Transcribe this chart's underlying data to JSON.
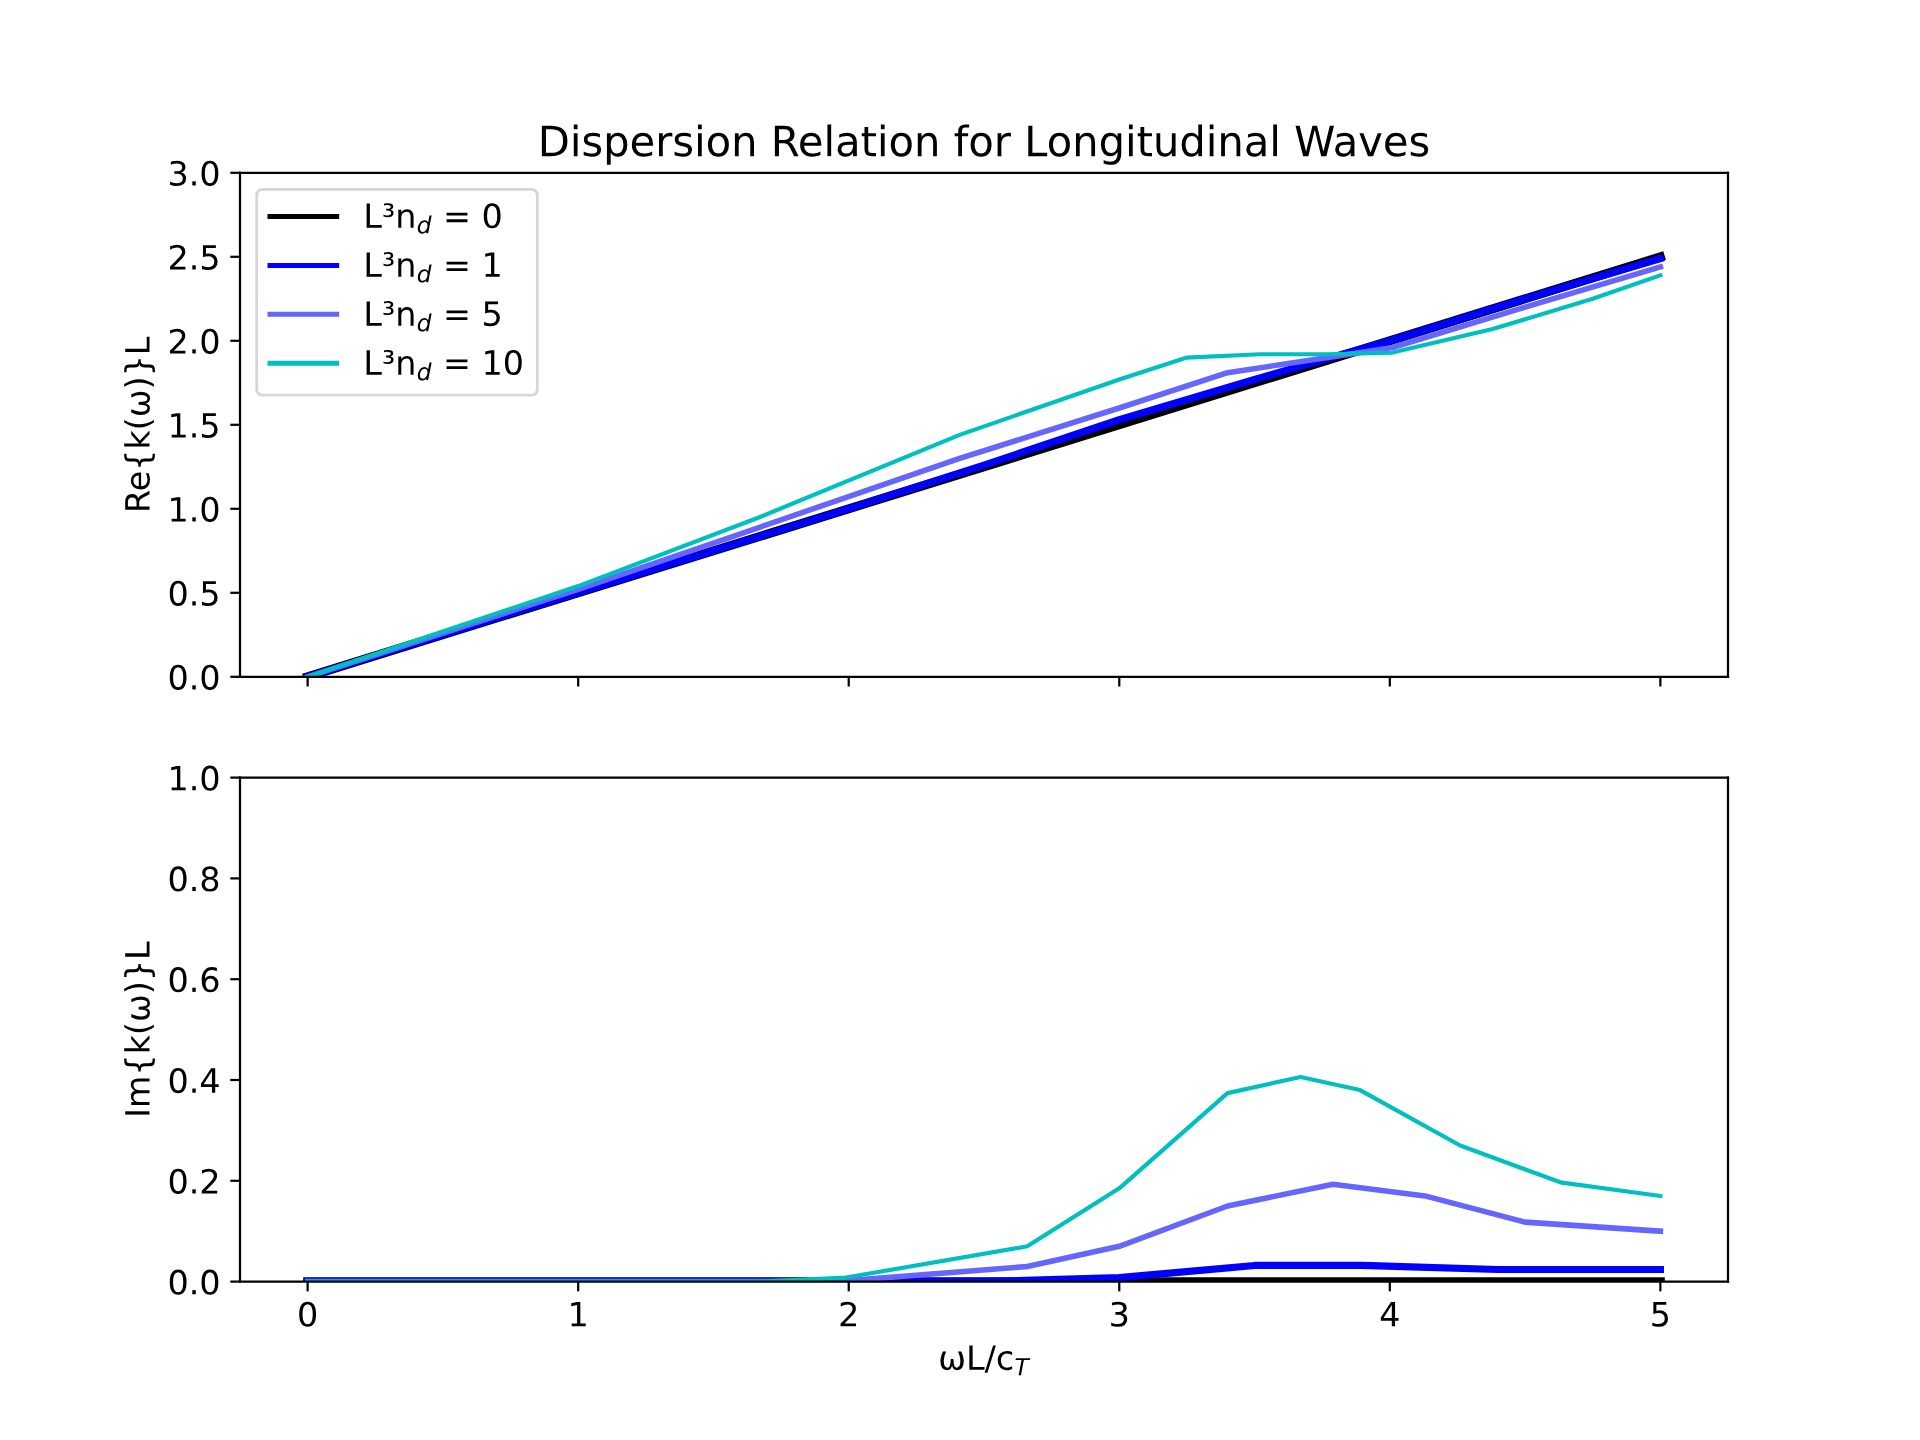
{
  "chart_data": [
    {
      "type": "line",
      "title": "Dispersion Relation for Longitudinal Waves",
      "ylabel": "Re{k(ω)}L",
      "series": [
        {
          "name": "L³n$_{d}$ = 0",
          "color": "#000000",
          "x": [
            0,
            5
          ],
          "values": [
            0,
            2.5
          ]
        },
        {
          "name": "L³n$_{d}$ = 1",
          "color": "#0000ff",
          "x": [
            0,
            1,
            2,
            2.5,
            3,
            3.5,
            4,
            4.5,
            5
          ],
          "values": [
            0,
            0.5,
            1.0,
            1.26,
            1.53,
            1.77,
            2.0,
            2.25,
            2.49
          ]
        },
        {
          "name": "L³n$_{d}$ = 5",
          "color": "#6666ff",
          "x": [
            0,
            1,
            1.67,
            2.41,
            3.0,
            3.4,
            3.77,
            4.01,
            4.5,
            5
          ],
          "values": [
            0,
            0.52,
            0.89,
            1.3,
            1.6,
            1.81,
            1.9,
            1.96,
            2.2,
            2.44
          ]
        },
        {
          "name": "L³n$_{d}$ = 10",
          "color": "#00bfbf",
          "x": [
            0,
            1,
            1.67,
            2.41,
            3.0,
            3.25,
            3.52,
            3.77,
            4.01,
            4.38,
            4.75,
            5
          ],
          "values": [
            0,
            0.54,
            0.95,
            1.44,
            1.77,
            1.9,
            1.92,
            1.92,
            1.93,
            2.07,
            2.25,
            2.39
          ]
        }
      ],
      "xlim": [
        -0.25,
        5.25
      ],
      "xticks": [
        0,
        1,
        2,
        3,
        4,
        5
      ],
      "ylim": [
        0,
        3
      ],
      "yticks": [
        {
          "value": 0,
          "label": "0.0"
        },
        {
          "value": 0.5,
          "label": "0.5"
        },
        {
          "value": 1,
          "label": "1.0"
        },
        {
          "value": 1.5,
          "label": "1.5"
        },
        {
          "value": 2,
          "label": "2.0"
        },
        {
          "value": 2.5,
          "label": "2.5"
        },
        {
          "value": 3,
          "label": "3.0"
        }
      ],
      "tick_labels": "y",
      "legend": "top left",
      "grid": false
    },
    {
      "type": "line",
      "ylabel": "Im{k(ω)}L",
      "xlabel": "ωL/c$_{T}$",
      "series": [
        {
          "color": "#000000",
          "x": [
            0,
            5
          ],
          "values": [
            0,
            0
          ]
        },
        {
          "color": "#0000ff",
          "x": [
            0,
            2.5,
            3.0,
            3.5,
            3.9,
            4.4,
            5
          ],
          "values": [
            0,
            0,
            0.008,
            0.032,
            0.032,
            0.024,
            0.024
          ]
        },
        {
          "color": "#6666ff",
          "x": [
            0,
            1.7,
            2.0,
            2.66,
            3.0,
            3.4,
            3.79,
            4.13,
            4.5,
            5
          ],
          "values": [
            0,
            0,
            0.002,
            0.03,
            0.07,
            0.15,
            0.193,
            0.17,
            0.118,
            0.1
          ]
        },
        {
          "color": "#00bfbf",
          "x": [
            0,
            1.67,
            1.99,
            2.66,
            3.0,
            3.4,
            3.67,
            3.89,
            4.26,
            4.63,
            5
          ],
          "values": [
            0,
            0,
            0.008,
            0.07,
            0.185,
            0.374,
            0.406,
            0.38,
            0.27,
            0.197,
            0.17
          ]
        }
      ],
      "xlim": [
        -0.25,
        5.25
      ],
      "xticks": [
        0,
        1,
        2,
        3,
        4,
        5
      ],
      "ylim": [
        0,
        1
      ],
      "yticks": [
        {
          "value": 0,
          "label": "0.0"
        },
        {
          "value": 0.2,
          "label": "0.2"
        },
        {
          "value": 0.4,
          "label": "0.4"
        },
        {
          "value": 0.6,
          "label": "0.6"
        },
        {
          "value": 0.8,
          "label": "0.8"
        },
        {
          "value": 1,
          "label": "1.0"
        }
      ],
      "grid": false
    }
  ]
}
